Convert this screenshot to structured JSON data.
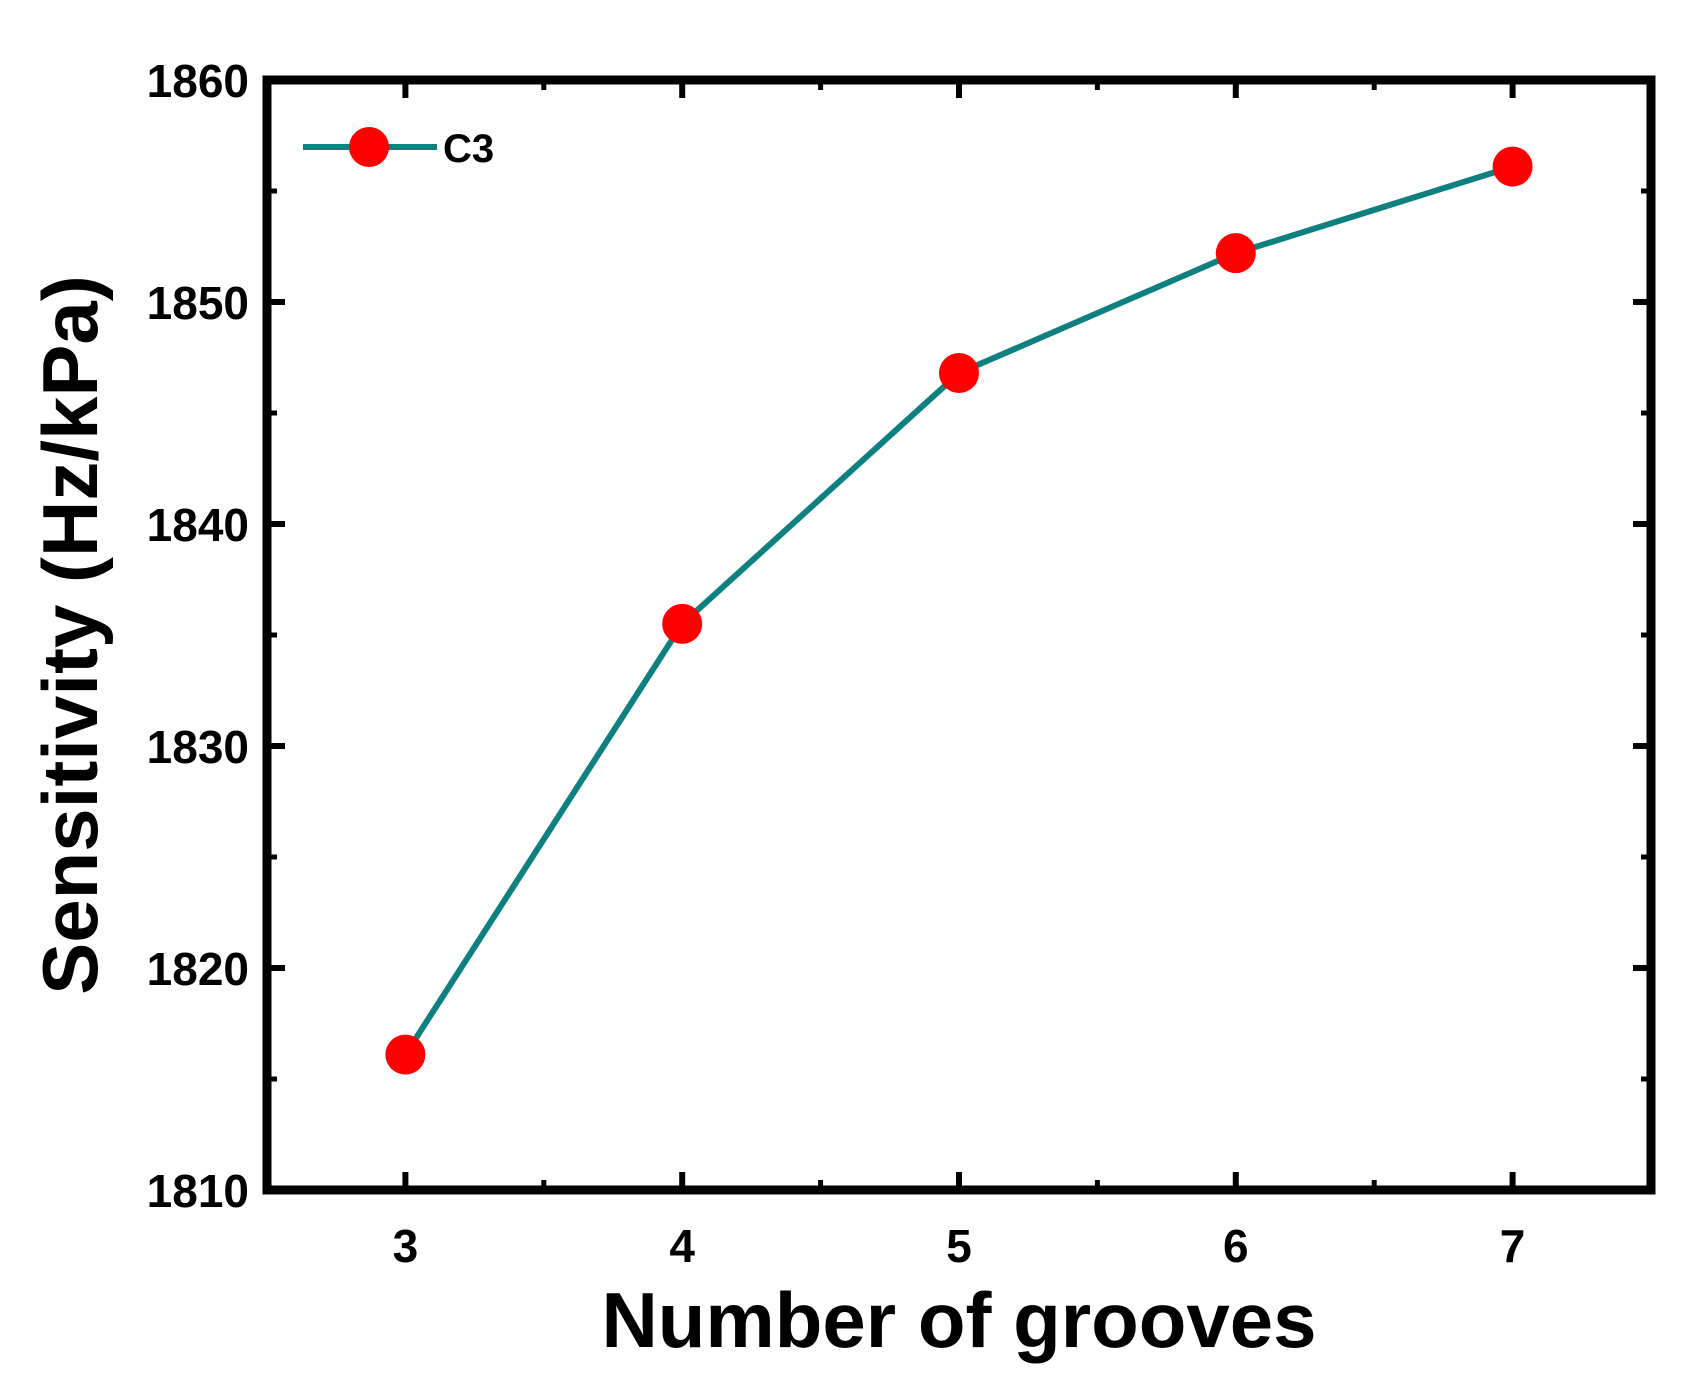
{
  "chart_data": {
    "type": "line",
    "xlabel": "Number of grooves",
    "ylabel": "Sensitivity (Hz/kPa)",
    "x": [
      3,
      4,
      5,
      6,
      7
    ],
    "xticks": [
      "3",
      "4",
      "5",
      "6",
      "7"
    ],
    "xlim": [
      2.5,
      7.5
    ],
    "yticks": [
      "1810",
      "1820",
      "1830",
      "1840",
      "1850",
      "1860"
    ],
    "ylim": [
      1810,
      1860
    ],
    "series": [
      {
        "name": "C3",
        "values": [
          1816.1,
          1835.5,
          1846.8,
          1852.2,
          1856.1
        ]
      }
    ],
    "legend_position": "top-left",
    "grid": false,
    "colors": {
      "line": "#0f8080",
      "marker": "#ff0000",
      "axes": "#000000"
    }
  }
}
